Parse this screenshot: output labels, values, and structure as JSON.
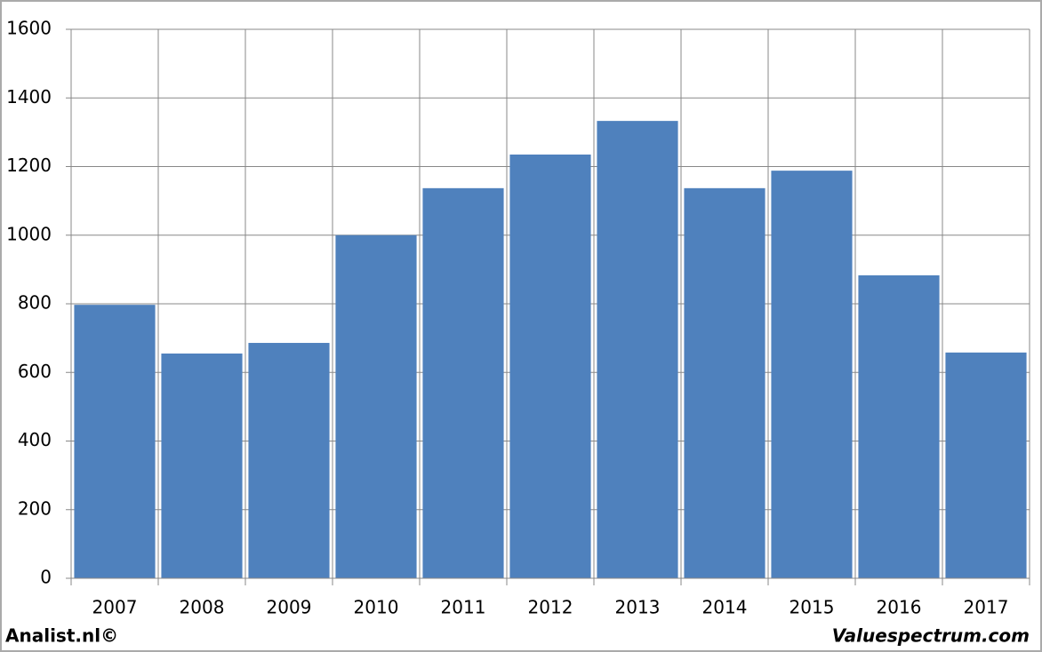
{
  "chart_data": {
    "type": "bar",
    "categories": [
      "2007",
      "2008",
      "2009",
      "2010",
      "2011",
      "2012",
      "2013",
      "2014",
      "2015",
      "2016",
      "2017"
    ],
    "values": [
      797,
      655,
      686,
      1000,
      1137,
      1235,
      1333,
      1137,
      1188,
      883,
      658
    ],
    "color": "#4f81bd",
    "ylim": [
      0,
      1600
    ],
    "yticks": [
      0,
      200,
      400,
      600,
      800,
      1000,
      1200,
      1400,
      1600
    ],
    "grid": true,
    "footer_left": "Analist.nl©",
    "footer_right": "Valuespectrum.com"
  }
}
